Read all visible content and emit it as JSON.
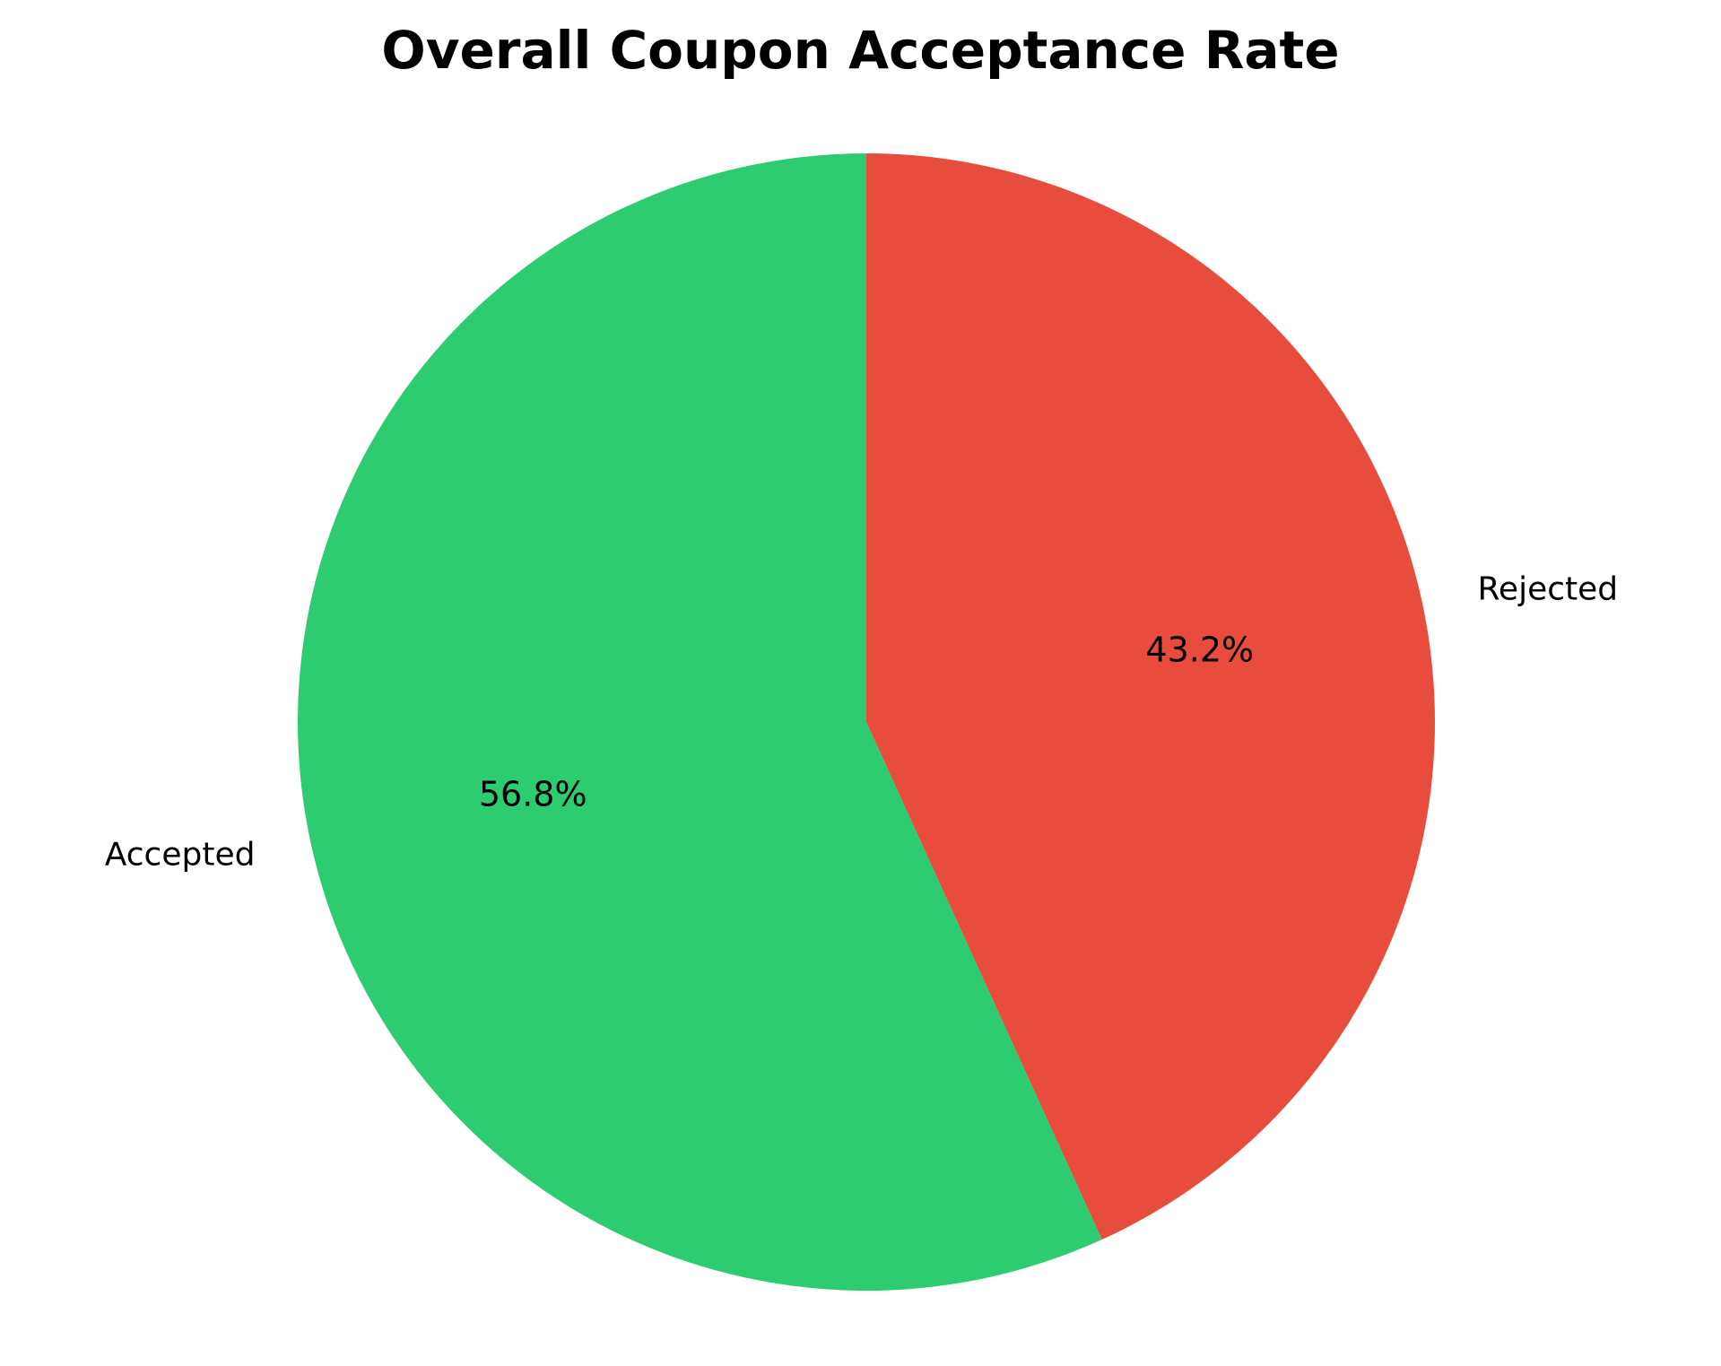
{
  "chart_data": {
    "type": "pie",
    "title": "Overall Coupon Acceptance Rate",
    "slices": [
      {
        "label": "Accepted",
        "value": 56.8,
        "pct_label": "56.8%",
        "color": "#2ecc71"
      },
      {
        "label": "Rejected",
        "value": 43.2,
        "pct_label": "43.2%",
        "color": "#e74c3c"
      }
    ],
    "start_angle": "top",
    "direction": "counterclockwise"
  }
}
